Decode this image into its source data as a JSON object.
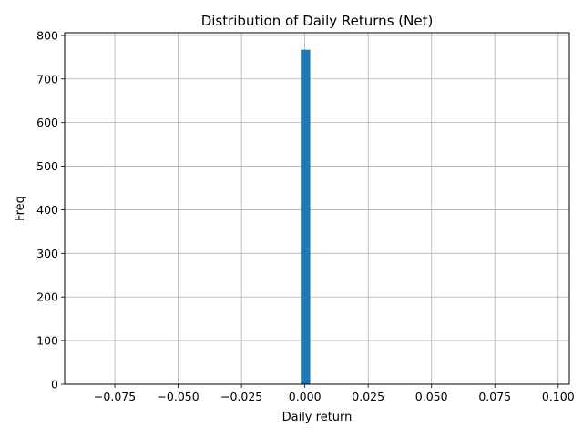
{
  "chart_data": {
    "type": "bar",
    "title": "Distribution of Daily Returns (Net)",
    "xlabel": "Daily return",
    "ylabel": "Freq",
    "xlim": [
      -0.0948,
      0.1044
    ],
    "ylim": [
      0,
      806
    ],
    "grid": true,
    "bar_color": "#1f77b4",
    "bin_width": 0.00372,
    "x_ticks": [
      -0.075,
      -0.05,
      -0.025,
      0.0,
      0.025,
      0.05,
      0.075,
      0.1
    ],
    "x_tick_labels": [
      "−0.075",
      "−0.050",
      "−0.025",
      "0.000",
      "0.025",
      "0.050",
      "0.075",
      "0.100"
    ],
    "y_ticks": [
      0,
      100,
      200,
      300,
      400,
      500,
      600,
      700,
      800
    ],
    "y_tick_labels": [
      "0",
      "100",
      "200",
      "300",
      "400",
      "500",
      "600",
      "700",
      "800"
    ],
    "bins": [
      {
        "x0": -0.0874,
        "count": 1
      },
      {
        "x0": -0.06,
        "count": 1
      },
      {
        "x0": -0.0415,
        "count": 1
      },
      {
        "x0": -0.0016,
        "count": 767
      },
      {
        "x0": 0.0106,
        "count": 1
      },
      {
        "x0": 0.0933,
        "count": 1
      },
      {
        "x0": 0.097,
        "count": 1
      }
    ]
  }
}
